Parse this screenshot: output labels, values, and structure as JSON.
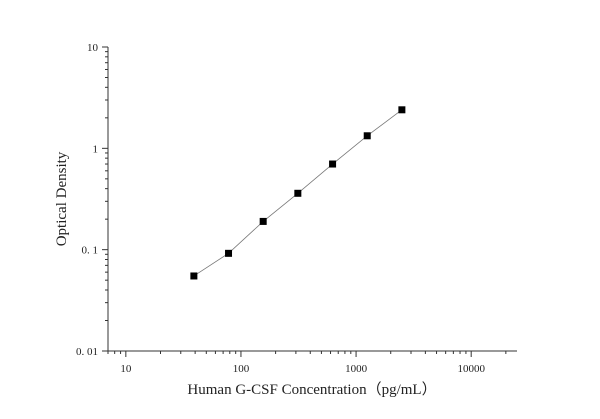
{
  "chart_data": {
    "type": "scatter",
    "title": "",
    "xlabel": "Human G-CSF Concentration（pg/mL）",
    "ylabel": "Optical Density",
    "x_scale": "log",
    "y_scale": "log",
    "xlim": [
      7,
      25000
    ],
    "ylim": [
      0.01,
      10
    ],
    "x_ticks": [
      10,
      100,
      1000,
      10000
    ],
    "x_tick_labels": [
      "10",
      "100",
      "1000",
      "10000"
    ],
    "y_ticks": [
      0.01,
      0.1,
      1,
      10
    ],
    "y_tick_labels": [
      "0. 01",
      "0. 1",
      "1",
      "10"
    ],
    "grid": false,
    "legend": false,
    "fit_line": true,
    "series": [
      {
        "marker": "square",
        "color": "#000000",
        "x": [
          39,
          78,
          156,
          312,
          625,
          1250,
          2500
        ],
        "y": [
          0.055,
          0.092,
          0.19,
          0.36,
          0.7,
          1.33,
          2.4
        ]
      }
    ]
  }
}
